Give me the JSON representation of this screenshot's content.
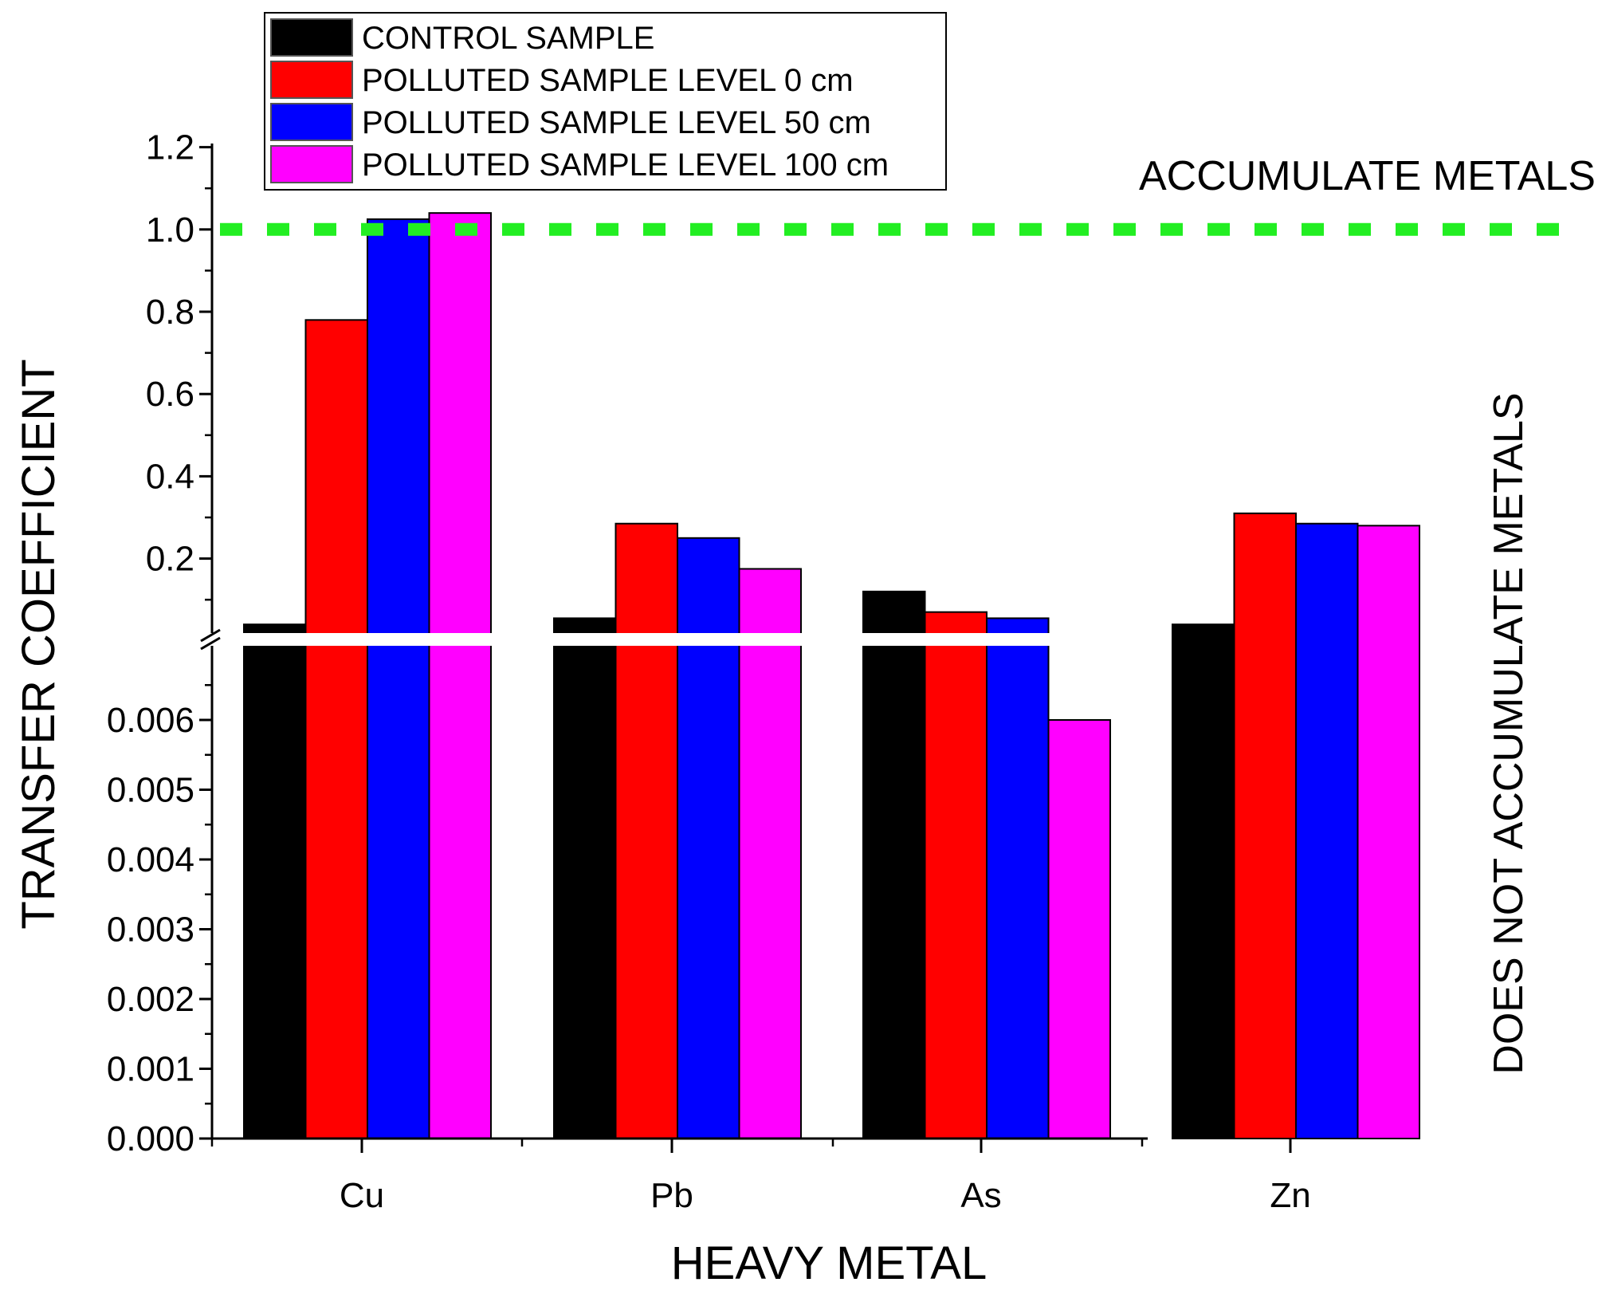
{
  "chart_data": {
    "type": "bar",
    "xlabel": "HEAVY METAL",
    "ylabel": "TRANSFER COEFFICIENT",
    "categories": [
      "Cu",
      "Pb",
      "As",
      "Zn"
    ],
    "series": [
      {
        "name": "CONTROL SAMPLE",
        "color": "#000000",
        "values": [
          0.04,
          0.055,
          0.12,
          0.04
        ]
      },
      {
        "name": "POLLUTED SAMPLE LEVEL 0 cm",
        "color": "#ff0000",
        "values": [
          0.78,
          0.285,
          0.07,
          0.31
        ]
      },
      {
        "name": "POLLUTED SAMPLE LEVEL 50 cm",
        "color": "#0000ff",
        "values": [
          1.025,
          0.25,
          0.055,
          0.285
        ]
      },
      {
        "name": "POLLUTED SAMPLE LEVEL 100 cm",
        "color": "#ff00ff",
        "values": [
          1.04,
          0.175,
          0.006,
          0.28
        ]
      }
    ],
    "y_axis_break": {
      "lower_range": [
        0,
        0.007
      ],
      "upper_range": [
        0.02,
        1.2
      ],
      "lower_ticks": [
        "0.000",
        "0.001",
        "0.002",
        "0.003",
        "0.004",
        "0.005",
        "0.006"
      ],
      "lower_tick_values": [
        0,
        0.001,
        0.002,
        0.003,
        0.004,
        0.005,
        0.006
      ],
      "upper_ticks": [
        "0.2",
        "0.4",
        "0.6",
        "0.8",
        "1.0",
        "1.2"
      ],
      "upper_tick_values": [
        0.2,
        0.4,
        0.6,
        0.8,
        1.0,
        1.2
      ]
    },
    "threshold": {
      "value": 1.0,
      "color": "#22ee22",
      "style": "dashed"
    },
    "annotations": {
      "above": "ACCUMULATE METALS",
      "below": "DOES NOT ACCUMULATE METALS"
    },
    "legend_position": "top-left"
  }
}
